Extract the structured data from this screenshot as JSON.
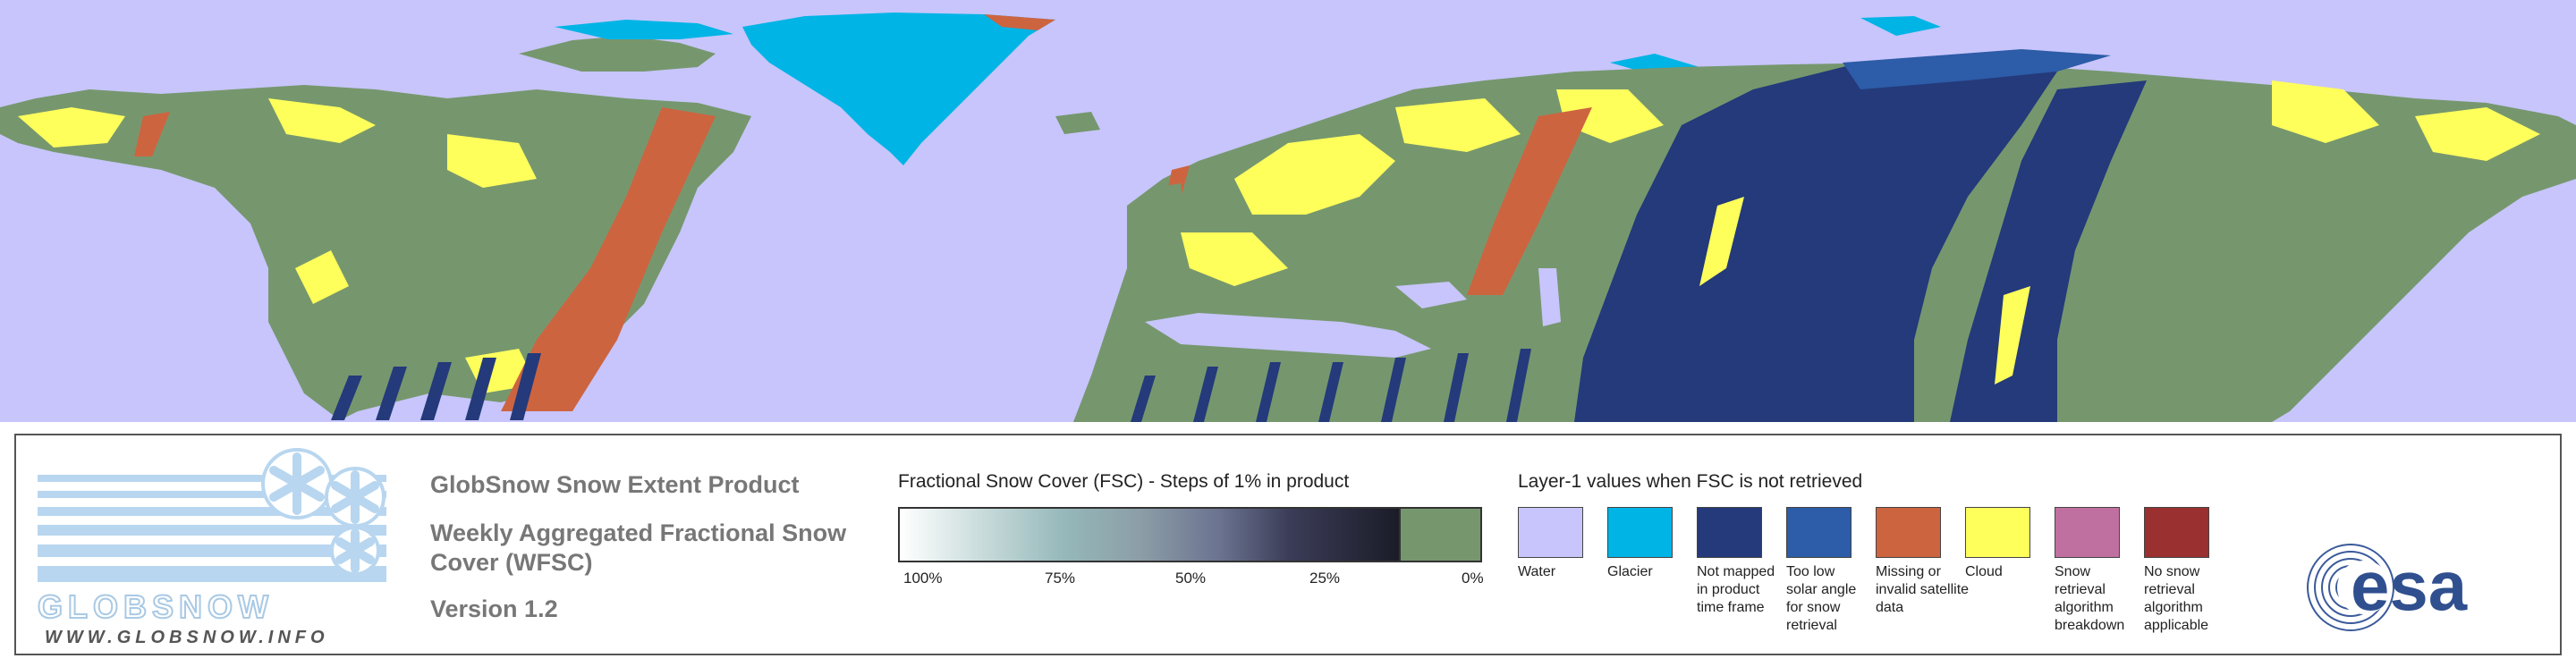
{
  "map": {
    "colors": {
      "water": "#c7c5fb",
      "glacier": "#00b4e6",
      "not_mapped": "#243a7a",
      "too_low_sun": "#2d5ca8",
      "missing": "#cd6440",
      "cloud": "#ffff5c",
      "snow_free": "#76976e",
      "breakdown": "#c070a0",
      "not_applicable": "#9a3030"
    }
  },
  "logo": {
    "wordmark": "GLOBSNOW",
    "url": "WWW.GLOBSNOW.INFO"
  },
  "titles": {
    "product": "GlobSnow Snow Extent Product",
    "subtitle": "Weekly Aggregated Fractional Snow Cover (WFSC)",
    "version": "Version 1.2"
  },
  "fsc_legend": {
    "title": "Fractional Snow Cover (FSC) - Steps of 1% in product",
    "ticks": [
      "100%",
      "75%",
      "50%",
      "25%",
      "0%"
    ]
  },
  "layer1_legend": {
    "title": "Layer-1 values when FSC is not retrieved",
    "items": [
      {
        "label": "Water",
        "color": "#c7c5fb"
      },
      {
        "label": "Glacier",
        "color": "#00b4e6"
      },
      {
        "label": "Not mapped in product time frame",
        "color": "#243a7a"
      },
      {
        "label": "Too low solar angle for snow retrieval",
        "color": "#2d5ca8"
      },
      {
        "label": "Missing or invalid satellite data",
        "color": "#cd6440"
      },
      {
        "label": "Cloud",
        "color": "#ffff5c"
      },
      {
        "label": "Snow retrieval algorithm breakdown",
        "color": "#c070a0"
      },
      {
        "label": "No snow retrieval algorithm applicable",
        "color": "#9a3030"
      }
    ]
  },
  "esa_logo": {
    "text": "esa"
  }
}
